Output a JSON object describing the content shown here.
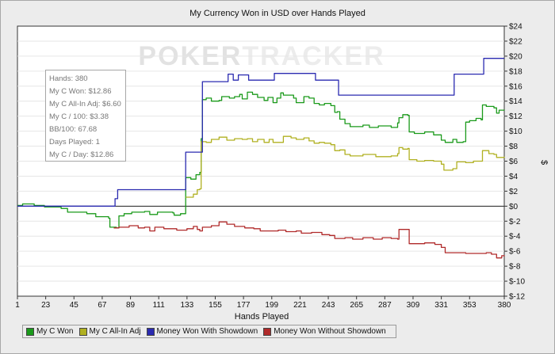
{
  "chart_data": {
    "type": "line",
    "title": "My Currency Won in USD over Hands Played",
    "xlabel": "Hands Played",
    "ylabel": "$",
    "xlim": [
      1,
      380
    ],
    "ylim": [
      -12,
      24
    ],
    "x_ticks": [
      "1",
      "23",
      "45",
      "67",
      "89",
      "111",
      "133",
      "155",
      "177",
      "199",
      "221",
      "243",
      "265",
      "287",
      "309",
      "331",
      "353",
      "380"
    ],
    "y_ticks": [
      "$24",
      "$22",
      "$20",
      "$18",
      "$16",
      "$14",
      "$12",
      "$10",
      "$8",
      "$6",
      "$4",
      "$2",
      "$0",
      "$-2",
      "$-4",
      "$-6",
      "$-8",
      "$-10",
      "$-12"
    ],
    "grid": "horizontal",
    "legend_position": "bottom",
    "watermark": "POKERTRACKER",
    "series": [
      {
        "name": "My C Won",
        "color": "#1a9a1a",
        "points": [
          [
            1,
            0.1
          ],
          [
            5,
            0.3
          ],
          [
            12,
            0.3
          ],
          [
            14,
            0.1
          ],
          [
            22,
            -0.1
          ],
          [
            35,
            -0.3
          ],
          [
            40,
            -0.8
          ],
          [
            55,
            -1.0
          ],
          [
            62,
            -1.4
          ],
          [
            72,
            -1.6
          ],
          [
            73,
            -2.8
          ],
          [
            78,
            -2.9
          ],
          [
            80,
            -1.3
          ],
          [
            84,
            -1.0
          ],
          [
            90,
            -0.8
          ],
          [
            100,
            -0.7
          ],
          [
            104,
            -1.1
          ],
          [
            110,
            -0.8
          ],
          [
            122,
            -0.9
          ],
          [
            123,
            -1.2
          ],
          [
            128,
            -1.0
          ],
          [
            131,
            -1.0
          ],
          [
            132,
            3.8
          ],
          [
            136,
            3.6
          ],
          [
            140,
            4.2
          ],
          [
            143,
            4.5
          ],
          [
            144,
            9.0
          ],
          [
            145,
            14.2
          ],
          [
            148,
            14.4
          ],
          [
            152,
            14.0
          ],
          [
            158,
            14.1
          ],
          [
            160,
            14.6
          ],
          [
            166,
            14.4
          ],
          [
            170,
            14.6
          ],
          [
            174,
            14.9
          ],
          [
            176,
            14.3
          ],
          [
            180,
            15.2
          ],
          [
            184,
            14.9
          ],
          [
            188,
            14.5
          ],
          [
            193,
            14.1
          ],
          [
            196,
            14.5
          ],
          [
            200,
            13.8
          ],
          [
            203,
            14.4
          ],
          [
            206,
            15.1
          ],
          [
            208,
            14.8
          ],
          [
            213,
            14.8
          ],
          [
            216,
            14.4
          ],
          [
            218,
            13.8
          ],
          [
            224,
            14.6
          ],
          [
            228,
            14.4
          ],
          [
            232,
            13.7
          ],
          [
            236,
            13.5
          ],
          [
            240,
            13.7
          ],
          [
            245,
            13.4
          ],
          [
            248,
            12.5
          ],
          [
            250,
            12.6
          ],
          [
            252,
            11.6
          ],
          [
            256,
            11.0
          ],
          [
            260,
            10.6
          ],
          [
            270,
            10.8
          ],
          [
            275,
            10.5
          ],
          [
            282,
            10.7
          ],
          [
            292,
            10.5
          ],
          [
            297,
            11.1
          ],
          [
            298,
            11.8
          ],
          [
            301,
            12.2
          ],
          [
            305,
            12.1
          ],
          [
            306,
            9.9
          ],
          [
            310,
            9.7
          ],
          [
            318,
            9.9
          ],
          [
            325,
            9.5
          ],
          [
            331,
            8.8
          ],
          [
            334,
            8.5
          ],
          [
            340,
            8.9
          ],
          [
            343,
            8.5
          ],
          [
            348,
            8.6
          ],
          [
            350,
            11.2
          ],
          [
            353,
            11.4
          ],
          [
            358,
            11.7
          ],
          [
            362,
            11.5
          ],
          [
            363,
            13.5
          ],
          [
            366,
            13.3
          ],
          [
            372,
            13.1
          ],
          [
            374,
            12.4
          ],
          [
            376,
            12.8
          ],
          [
            380,
            12.86
          ]
        ]
      },
      {
        "name": "My C All-In Adj",
        "color": "#b0b020",
        "points": [
          [
            132,
            1.2
          ],
          [
            138,
            1.6
          ],
          [
            141,
            2.2
          ],
          [
            143,
            2.3
          ],
          [
            144,
            8.6
          ],
          [
            148,
            8.5
          ],
          [
            152,
            8.9
          ],
          [
            158,
            9.2
          ],
          [
            164,
            8.8
          ],
          [
            170,
            9.0
          ],
          [
            176,
            8.9
          ],
          [
            180,
            9.0
          ],
          [
            184,
            8.6
          ],
          [
            188,
            8.9
          ],
          [
            193,
            8.5
          ],
          [
            197,
            8.9
          ],
          [
            200,
            8.5
          ],
          [
            204,
            8.5
          ],
          [
            208,
            9.3
          ],
          [
            214,
            9.1
          ],
          [
            218,
            8.9
          ],
          [
            224,
            9.1
          ],
          [
            228,
            8.7
          ],
          [
            232,
            8.4
          ],
          [
            236,
            8.5
          ],
          [
            240,
            8.4
          ],
          [
            245,
            8.2
          ],
          [
            248,
            7.4
          ],
          [
            252,
            7.5
          ],
          [
            256,
            6.9
          ],
          [
            260,
            6.7
          ],
          [
            270,
            6.9
          ],
          [
            280,
            6.6
          ],
          [
            292,
            6.7
          ],
          [
            297,
            7.0
          ],
          [
            298,
            7.8
          ],
          [
            301,
            7.6
          ],
          [
            305,
            7.7
          ],
          [
            306,
            6.2
          ],
          [
            312,
            6.0
          ],
          [
            318,
            6.1
          ],
          [
            325,
            6.0
          ],
          [
            331,
            5.6
          ],
          [
            333,
            4.8
          ],
          [
            340,
            5.0
          ],
          [
            343,
            5.9
          ],
          [
            350,
            5.8
          ],
          [
            356,
            6.0
          ],
          [
            360,
            6.0
          ],
          [
            363,
            7.4
          ],
          [
            368,
            7.0
          ],
          [
            372,
            6.9
          ],
          [
            374,
            6.5
          ],
          [
            380,
            6.6
          ]
        ]
      },
      {
        "name": "Money Won With Showdown",
        "color": "#2a2ab0",
        "points": [
          [
            1,
            0.0
          ],
          [
            76,
            0.0
          ],
          [
            77,
            1.0
          ],
          [
            78,
            1.0
          ],
          [
            79,
            2.2
          ],
          [
            131,
            2.2
          ],
          [
            132,
            7.2
          ],
          [
            144,
            7.2
          ],
          [
            145,
            16.6
          ],
          [
            164,
            16.6
          ],
          [
            165,
            17.6
          ],
          [
            168,
            17.6
          ],
          [
            169,
            16.8
          ],
          [
            172,
            16.8
          ],
          [
            173,
            17.5
          ],
          [
            180,
            17.5
          ],
          [
            181,
            16.8
          ],
          [
            200,
            16.8
          ],
          [
            201,
            17.7
          ],
          [
            232,
            17.7
          ],
          [
            233,
            16.8
          ],
          [
            250,
            16.8
          ],
          [
            251,
            14.8
          ],
          [
            340,
            14.8
          ],
          [
            341,
            17.6
          ],
          [
            363,
            17.6
          ],
          [
            364,
            19.7
          ],
          [
            380,
            19.7
          ]
        ]
      },
      {
        "name": "Money Won Without Showdown",
        "color": "#b02a2a",
        "points": [
          [
            76,
            -2.9
          ],
          [
            80,
            -2.8
          ],
          [
            88,
            -2.6
          ],
          [
            95,
            -2.9
          ],
          [
            100,
            -2.8
          ],
          [
            104,
            -3.3
          ],
          [
            108,
            -2.8
          ],
          [
            115,
            -3.0
          ],
          [
            125,
            -3.2
          ],
          [
            133,
            -3.0
          ],
          [
            138,
            -2.7
          ],
          [
            141,
            -3.1
          ],
          [
            143,
            -3.3
          ],
          [
            145,
            -2.8
          ],
          [
            152,
            -2.6
          ],
          [
            158,
            -2.1
          ],
          [
            164,
            -2.4
          ],
          [
            170,
            -2.7
          ],
          [
            178,
            -2.9
          ],
          [
            185,
            -3.0
          ],
          [
            190,
            -3.3
          ],
          [
            198,
            -3.3
          ],
          [
            204,
            -3.2
          ],
          [
            210,
            -3.4
          ],
          [
            218,
            -3.3
          ],
          [
            222,
            -3.6
          ],
          [
            230,
            -3.5
          ],
          [
            238,
            -3.8
          ],
          [
            244,
            -3.9
          ],
          [
            248,
            -4.3
          ],
          [
            256,
            -4.2
          ],
          [
            262,
            -4.4
          ],
          [
            270,
            -4.2
          ],
          [
            278,
            -4.4
          ],
          [
            285,
            -4.2
          ],
          [
            292,
            -4.3
          ],
          [
            297,
            -4.4
          ],
          [
            298,
            -3.1
          ],
          [
            305,
            -3.1
          ],
          [
            306,
            -5.0
          ],
          [
            312,
            -5.0
          ],
          [
            318,
            -4.9
          ],
          [
            326,
            -5.1
          ],
          [
            331,
            -5.5
          ],
          [
            334,
            -6.2
          ],
          [
            342,
            -6.2
          ],
          [
            350,
            -6.3
          ],
          [
            360,
            -6.3
          ],
          [
            366,
            -6.2
          ],
          [
            370,
            -6.4
          ],
          [
            374,
            -6.9
          ],
          [
            378,
            -6.6
          ],
          [
            380,
            -6.7
          ]
        ]
      }
    ]
  },
  "stats_box": {
    "lines": [
      "Hands: 380",
      "My C Won: $12.86",
      "My C All-In Adj: $6.60",
      "My C / 100: $3.38",
      "BB/100: 67.68",
      "Days Played: 1",
      "My C / Day: $12.86"
    ]
  }
}
